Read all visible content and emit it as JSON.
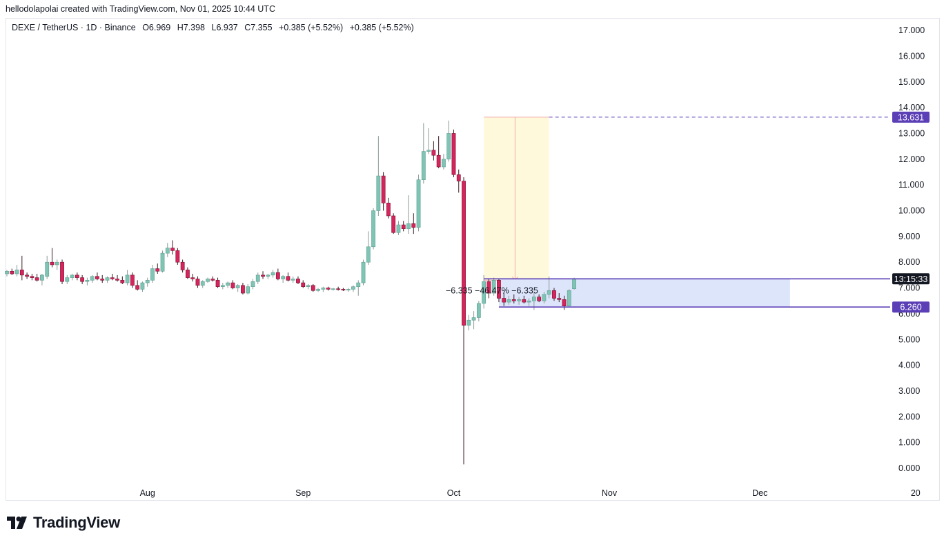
{
  "header": {
    "created_line": "hellodolapolai created with TradingView.com, Nov 01, 2025 10:44 UTC"
  },
  "legend": {
    "symbol": "DEXE / TetherUS · 1D · Binance",
    "open": "O6.969",
    "high": "H7.398",
    "low": "L6.937",
    "close": "C7.355",
    "change1": "+0.385 (+5.52%)",
    "change2": "+0.385 (+5.52%)"
  },
  "brand": {
    "name": "TradingView"
  },
  "colors": {
    "up": "#7fc4b4",
    "down": "#d6245c",
    "accent": "#5b3fb6",
    "zone_fill": "#dde5fb",
    "highlight_fill": "#fff9dc",
    "measure_line": "#f0a8a8"
  },
  "chart_data": {
    "type": "candlestick",
    "ylim": [
      -0.5,
      17.4
    ],
    "y_ticks": [
      "0.000",
      "1.000",
      "2.000",
      "3.000",
      "4.000",
      "5.000",
      "6.000",
      "7.000",
      "8.000",
      "9.000",
      "10.000",
      "11.000",
      "12.000",
      "13.000",
      "14.000",
      "15.000",
      "16.000",
      "17.000"
    ],
    "x_labels": [
      {
        "label": "Aug",
        "date": "2025-08-01"
      },
      {
        "label": "Sep",
        "date": "2025-09-01"
      },
      {
        "label": "Oct",
        "date": "2025-10-01"
      },
      {
        "label": "Nov",
        "date": "2025-11-01"
      },
      {
        "label": "Dec",
        "date": "2025-12-01"
      },
      {
        "label": "20",
        "date": "2026-01-01"
      }
    ],
    "price_labels": [
      {
        "text": "13.631",
        "value": 13.631,
        "style": "accent"
      },
      {
        "text": "13:15:33",
        "value": 7.355,
        "style": "dark"
      },
      {
        "text": "6.260",
        "value": 6.26,
        "style": "accent"
      }
    ],
    "measure_text": "−6.335 −46.47% −6.335",
    "dashed_level": 13.631,
    "zone": {
      "top": 7.355,
      "bottom": 6.26,
      "x_start": "2025-10-10",
      "x_end": "2025-12-07"
    },
    "highlight": {
      "top": 13.631,
      "bottom": 7.3,
      "x_start": "2025-10-07",
      "x_end": "2025-10-20"
    },
    "candles": [
      {
        "date": "2025-07-04",
        "o": 7.55,
        "h": 7.7,
        "l": 7.45,
        "c": 7.65
      },
      {
        "date": "2025-07-05",
        "o": 7.65,
        "h": 7.75,
        "l": 7.5,
        "c": 7.55
      },
      {
        "date": "2025-07-06",
        "o": 7.55,
        "h": 7.9,
        "l": 7.45,
        "c": 7.7
      },
      {
        "date": "2025-07-07",
        "o": 7.7,
        "h": 8.25,
        "l": 7.3,
        "c": 7.5
      },
      {
        "date": "2025-07-08",
        "o": 7.5,
        "h": 7.6,
        "l": 7.35,
        "c": 7.45
      },
      {
        "date": "2025-07-09",
        "o": 7.45,
        "h": 7.55,
        "l": 7.3,
        "c": 7.4
      },
      {
        "date": "2025-07-10",
        "o": 7.4,
        "h": 7.55,
        "l": 7.25,
        "c": 7.3
      },
      {
        "date": "2025-07-11",
        "o": 7.3,
        "h": 7.55,
        "l": 7.1,
        "c": 7.5
      },
      {
        "date": "2025-07-12",
        "o": 7.45,
        "h": 8.25,
        "l": 7.35,
        "c": 8.0
      },
      {
        "date": "2025-07-13",
        "o": 8.0,
        "h": 8.55,
        "l": 7.8,
        "c": 7.9
      },
      {
        "date": "2025-07-14",
        "o": 7.9,
        "h": 8.1,
        "l": 7.7,
        "c": 8.0
      },
      {
        "date": "2025-07-15",
        "o": 8.0,
        "h": 8.1,
        "l": 7.15,
        "c": 7.25
      },
      {
        "date": "2025-07-16",
        "o": 7.25,
        "h": 7.5,
        "l": 7.15,
        "c": 7.4
      },
      {
        "date": "2025-07-17",
        "o": 7.4,
        "h": 7.55,
        "l": 7.3,
        "c": 7.5
      },
      {
        "date": "2025-07-18",
        "o": 7.5,
        "h": 7.6,
        "l": 7.3,
        "c": 7.4
      },
      {
        "date": "2025-07-19",
        "o": 7.4,
        "h": 7.5,
        "l": 7.15,
        "c": 7.25
      },
      {
        "date": "2025-07-20",
        "o": 7.25,
        "h": 7.4,
        "l": 7.1,
        "c": 7.3
      },
      {
        "date": "2025-07-21",
        "o": 7.3,
        "h": 7.5,
        "l": 7.2,
        "c": 7.45
      },
      {
        "date": "2025-07-22",
        "o": 7.45,
        "h": 7.6,
        "l": 7.3,
        "c": 7.35
      },
      {
        "date": "2025-07-23",
        "o": 7.35,
        "h": 7.5,
        "l": 7.2,
        "c": 7.3
      },
      {
        "date": "2025-07-24",
        "o": 7.3,
        "h": 7.45,
        "l": 7.2,
        "c": 7.4
      },
      {
        "date": "2025-07-25",
        "o": 7.4,
        "h": 7.55,
        "l": 7.3,
        "c": 7.35
      },
      {
        "date": "2025-07-26",
        "o": 7.35,
        "h": 7.5,
        "l": 7.25,
        "c": 7.3
      },
      {
        "date": "2025-07-27",
        "o": 7.3,
        "h": 7.45,
        "l": 7.15,
        "c": 7.2
      },
      {
        "date": "2025-07-28",
        "o": 7.2,
        "h": 7.7,
        "l": 7.1,
        "c": 7.5
      },
      {
        "date": "2025-07-29",
        "o": 7.5,
        "h": 7.6,
        "l": 7.0,
        "c": 7.1
      },
      {
        "date": "2025-07-30",
        "o": 7.1,
        "h": 7.3,
        "l": 6.9,
        "c": 6.95
      },
      {
        "date": "2025-07-31",
        "o": 6.95,
        "h": 7.25,
        "l": 6.85,
        "c": 7.2
      },
      {
        "date": "2025-08-01",
        "o": 7.2,
        "h": 7.4,
        "l": 7.05,
        "c": 7.3
      },
      {
        "date": "2025-08-02",
        "o": 7.3,
        "h": 7.9,
        "l": 7.2,
        "c": 7.75
      },
      {
        "date": "2025-08-03",
        "o": 7.75,
        "h": 7.95,
        "l": 7.55,
        "c": 7.65
      },
      {
        "date": "2025-08-04",
        "o": 7.65,
        "h": 8.45,
        "l": 7.6,
        "c": 8.35
      },
      {
        "date": "2025-08-05",
        "o": 8.35,
        "h": 8.75,
        "l": 8.2,
        "c": 8.55
      },
      {
        "date": "2025-08-06",
        "o": 8.55,
        "h": 8.85,
        "l": 8.3,
        "c": 8.45
      },
      {
        "date": "2025-08-07",
        "o": 8.45,
        "h": 8.55,
        "l": 7.9,
        "c": 8.0
      },
      {
        "date": "2025-08-08",
        "o": 8.0,
        "h": 8.1,
        "l": 7.6,
        "c": 7.7
      },
      {
        "date": "2025-08-09",
        "o": 7.7,
        "h": 7.8,
        "l": 7.35,
        "c": 7.4
      },
      {
        "date": "2025-08-10",
        "o": 7.4,
        "h": 7.55,
        "l": 7.25,
        "c": 7.35
      },
      {
        "date": "2025-08-11",
        "o": 7.35,
        "h": 7.45,
        "l": 7.0,
        "c": 7.1
      },
      {
        "date": "2025-08-12",
        "o": 7.1,
        "h": 7.3,
        "l": 7.0,
        "c": 7.25
      },
      {
        "date": "2025-08-13",
        "o": 7.25,
        "h": 7.4,
        "l": 7.2,
        "c": 7.35
      },
      {
        "date": "2025-08-14",
        "o": 7.35,
        "h": 7.45,
        "l": 7.25,
        "c": 7.3
      },
      {
        "date": "2025-08-15",
        "o": 7.3,
        "h": 7.4,
        "l": 7.0,
        "c": 7.05
      },
      {
        "date": "2025-08-16",
        "o": 7.05,
        "h": 7.2,
        "l": 6.95,
        "c": 7.1
      },
      {
        "date": "2025-08-17",
        "o": 7.1,
        "h": 7.25,
        "l": 7.0,
        "c": 7.2
      },
      {
        "date": "2025-08-18",
        "o": 7.2,
        "h": 7.3,
        "l": 6.95,
        "c": 7.0
      },
      {
        "date": "2025-08-19",
        "o": 7.0,
        "h": 7.15,
        "l": 6.85,
        "c": 7.1
      },
      {
        "date": "2025-08-20",
        "o": 7.1,
        "h": 7.2,
        "l": 6.75,
        "c": 6.8
      },
      {
        "date": "2025-08-21",
        "o": 6.8,
        "h": 7.15,
        "l": 6.75,
        "c": 7.05
      },
      {
        "date": "2025-08-22",
        "o": 7.05,
        "h": 7.35,
        "l": 6.95,
        "c": 7.25
      },
      {
        "date": "2025-08-23",
        "o": 7.25,
        "h": 7.6,
        "l": 7.15,
        "c": 7.5
      },
      {
        "date": "2025-08-24",
        "o": 7.5,
        "h": 7.65,
        "l": 7.35,
        "c": 7.45
      },
      {
        "date": "2025-08-25",
        "o": 7.45,
        "h": 7.55,
        "l": 7.35,
        "c": 7.5
      },
      {
        "date": "2025-08-26",
        "o": 7.5,
        "h": 7.7,
        "l": 7.4,
        "c": 7.6
      },
      {
        "date": "2025-08-27",
        "o": 7.6,
        "h": 7.75,
        "l": 7.3,
        "c": 7.35
      },
      {
        "date": "2025-08-28",
        "o": 7.35,
        "h": 7.5,
        "l": 7.2,
        "c": 7.45
      },
      {
        "date": "2025-08-29",
        "o": 7.45,
        "h": 7.6,
        "l": 7.25,
        "c": 7.3
      },
      {
        "date": "2025-08-30",
        "o": 7.3,
        "h": 7.45,
        "l": 7.2,
        "c": 7.35
      },
      {
        "date": "2025-08-31",
        "o": 7.35,
        "h": 7.45,
        "l": 7.15,
        "c": 7.2
      },
      {
        "date": "2025-09-01",
        "o": 7.2,
        "h": 7.3,
        "l": 7.0,
        "c": 7.05
      },
      {
        "date": "2025-09-02",
        "o": 7.05,
        "h": 7.15,
        "l": 6.95,
        "c": 7.1
      },
      {
        "date": "2025-09-03",
        "o": 7.1,
        "h": 7.15,
        "l": 6.85,
        "c": 6.9
      },
      {
        "date": "2025-09-04",
        "o": 6.9,
        "h": 7.0,
        "l": 6.85,
        "c": 6.95
      },
      {
        "date": "2025-09-05",
        "o": 6.95,
        "h": 7.05,
        "l": 6.85,
        "c": 7.0
      },
      {
        "date": "2025-09-06",
        "o": 7.0,
        "h": 7.05,
        "l": 6.9,
        "c": 6.95
      },
      {
        "date": "2025-09-07",
        "o": 6.95,
        "h": 7.0,
        "l": 6.9,
        "c": 6.97
      },
      {
        "date": "2025-09-08",
        "o": 6.97,
        "h": 7.05,
        "l": 6.9,
        "c": 6.95
      },
      {
        "date": "2025-09-09",
        "o": 6.95,
        "h": 7.0,
        "l": 6.88,
        "c": 6.93
      },
      {
        "date": "2025-09-10",
        "o": 6.93,
        "h": 7.0,
        "l": 6.85,
        "c": 6.95
      },
      {
        "date": "2025-09-11",
        "o": 6.95,
        "h": 7.1,
        "l": 6.85,
        "c": 7.05
      },
      {
        "date": "2025-09-12",
        "o": 7.05,
        "h": 7.3,
        "l": 6.7,
        "c": 7.2
      },
      {
        "date": "2025-09-13",
        "o": 7.2,
        "h": 8.1,
        "l": 7.1,
        "c": 8.0
      },
      {
        "date": "2025-09-14",
        "o": 8.0,
        "h": 9.2,
        "l": 7.9,
        "c": 8.6
      },
      {
        "date": "2025-09-15",
        "o": 8.6,
        "h": 10.1,
        "l": 8.5,
        "c": 10.0
      },
      {
        "date": "2025-09-16",
        "o": 10.0,
        "h": 12.9,
        "l": 9.8,
        "c": 11.35
      },
      {
        "date": "2025-09-17",
        "o": 11.35,
        "h": 11.5,
        "l": 10.0,
        "c": 10.3
      },
      {
        "date": "2025-09-18",
        "o": 10.3,
        "h": 10.5,
        "l": 9.7,
        "c": 9.8
      },
      {
        "date": "2025-09-19",
        "o": 9.8,
        "h": 9.9,
        "l": 9.1,
        "c": 9.15
      },
      {
        "date": "2025-09-20",
        "o": 9.15,
        "h": 9.6,
        "l": 9.05,
        "c": 9.45
      },
      {
        "date": "2025-09-21",
        "o": 9.45,
        "h": 9.6,
        "l": 9.2,
        "c": 9.3
      },
      {
        "date": "2025-09-22",
        "o": 9.3,
        "h": 10.6,
        "l": 9.1,
        "c": 9.5
      },
      {
        "date": "2025-09-23",
        "o": 9.5,
        "h": 9.9,
        "l": 9.1,
        "c": 9.35
      },
      {
        "date": "2025-09-24",
        "o": 9.35,
        "h": 11.4,
        "l": 9.2,
        "c": 11.2
      },
      {
        "date": "2025-09-25",
        "o": 11.2,
        "h": 13.4,
        "l": 11.05,
        "c": 12.3
      },
      {
        "date": "2025-09-26",
        "o": 12.3,
        "h": 13.2,
        "l": 12.2,
        "c": 12.35
      },
      {
        "date": "2025-09-27",
        "o": 12.35,
        "h": 12.7,
        "l": 11.95,
        "c": 12.15
      },
      {
        "date": "2025-09-28",
        "o": 12.15,
        "h": 12.9,
        "l": 11.65,
        "c": 11.7
      },
      {
        "date": "2025-09-29",
        "o": 11.7,
        "h": 12.2,
        "l": 11.6,
        "c": 12.0
      },
      {
        "date": "2025-09-30",
        "o": 12.0,
        "h": 13.5,
        "l": 11.9,
        "c": 13.0
      },
      {
        "date": "2025-10-01",
        "o": 13.0,
        "h": 13.15,
        "l": 11.3,
        "c": 11.4
      },
      {
        "date": "2025-10-02",
        "o": 11.4,
        "h": 11.6,
        "l": 10.7,
        "c": 11.15
      },
      {
        "date": "2025-10-03",
        "o": 11.15,
        "h": 11.3,
        "l": 0.15,
        "c": 5.55
      },
      {
        "date": "2025-10-04",
        "o": 5.55,
        "h": 5.95,
        "l": 5.35,
        "c": 5.75
      },
      {
        "date": "2025-10-05",
        "o": 5.75,
        "h": 6.1,
        "l": 5.4,
        "c": 5.85
      },
      {
        "date": "2025-10-06",
        "o": 5.85,
        "h": 6.5,
        "l": 5.7,
        "c": 6.4
      },
      {
        "date": "2025-10-07",
        "o": 6.4,
        "h": 7.5,
        "l": 6.2,
        "c": 7.25
      },
      {
        "date": "2025-10-08",
        "o": 7.25,
        "h": 7.35,
        "l": 6.6,
        "c": 6.8
      },
      {
        "date": "2025-10-09",
        "o": 6.8,
        "h": 7.4,
        "l": 6.7,
        "c": 7.3
      },
      {
        "date": "2025-10-10",
        "o": 7.3,
        "h": 7.35,
        "l": 6.45,
        "c": 6.6
      },
      {
        "date": "2025-10-11",
        "o": 6.6,
        "h": 6.8,
        "l": 6.3,
        "c": 6.45
      },
      {
        "date": "2025-10-12",
        "o": 6.45,
        "h": 6.7,
        "l": 6.35,
        "c": 6.55
      },
      {
        "date": "2025-10-13",
        "o": 6.55,
        "h": 6.75,
        "l": 6.4,
        "c": 6.5
      },
      {
        "date": "2025-10-14",
        "o": 6.5,
        "h": 6.65,
        "l": 6.35,
        "c": 6.55
      },
      {
        "date": "2025-10-15",
        "o": 6.55,
        "h": 6.7,
        "l": 6.4,
        "c": 6.45
      },
      {
        "date": "2025-10-16",
        "o": 6.45,
        "h": 6.6,
        "l": 6.3,
        "c": 6.5
      },
      {
        "date": "2025-10-17",
        "o": 6.5,
        "h": 6.8,
        "l": 6.15,
        "c": 6.65
      },
      {
        "date": "2025-10-18",
        "o": 6.65,
        "h": 6.75,
        "l": 6.45,
        "c": 6.5
      },
      {
        "date": "2025-10-19",
        "o": 6.5,
        "h": 6.85,
        "l": 6.4,
        "c": 6.75
      },
      {
        "date": "2025-10-20",
        "o": 6.75,
        "h": 7.45,
        "l": 6.6,
        "c": 6.9
      },
      {
        "date": "2025-10-21",
        "o": 6.9,
        "h": 7.0,
        "l": 6.5,
        "c": 6.6
      },
      {
        "date": "2025-10-22",
        "o": 6.6,
        "h": 6.8,
        "l": 6.45,
        "c": 6.55
      },
      {
        "date": "2025-10-23",
        "o": 6.55,
        "h": 6.7,
        "l": 6.15,
        "c": 6.3
      },
      {
        "date": "2025-10-24",
        "o": 6.3,
        "h": 6.95,
        "l": 6.25,
        "c": 6.9
      },
      {
        "date": "2025-10-25",
        "o": 6.969,
        "h": 7.398,
        "l": 6.937,
        "c": 7.355
      }
    ]
  }
}
